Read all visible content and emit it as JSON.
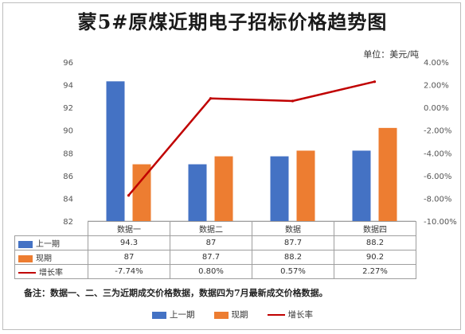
{
  "title": "蒙5#原煤近期电子招标价格趋势图",
  "unit": "单位：美元/吨",
  "note": "备注：数据一、二、三为近期成交价格数据，数据四为7月最新成交价格数据。",
  "colors": {
    "prev": "#4472C4",
    "curr": "#ED7D31",
    "rate": "#C00000"
  },
  "chart_data": {
    "type": "bar",
    "categories": [
      "数据一",
      "数据二",
      "数据",
      "数据四"
    ],
    "series": [
      {
        "name": "上一期",
        "type": "bar",
        "axis": "left",
        "values": [
          94.3,
          87,
          87.7,
          88.2
        ],
        "labels": [
          "94.3",
          "87",
          "87.7",
          "88.2"
        ]
      },
      {
        "name": "现期",
        "type": "bar",
        "axis": "left",
        "values": [
          87,
          87.7,
          88.2,
          90.2
        ],
        "labels": [
          "87",
          "87.7",
          "88.2",
          "90.2"
        ]
      },
      {
        "name": "增长率",
        "type": "line",
        "axis": "right",
        "values": [
          -7.74,
          0.8,
          0.57,
          2.27
        ],
        "labels": [
          "-7.74%",
          "0.80%",
          "0.57%",
          "2.27%"
        ]
      }
    ],
    "y_left": {
      "ylim": [
        82,
        96
      ],
      "ticks": [
        "82",
        "84",
        "86",
        "88",
        "90",
        "92",
        "94",
        "96"
      ]
    },
    "y_right": {
      "ylim": [
        -10,
        4
      ],
      "ticks": [
        "-10.00%",
        "-8.00%",
        "-6.00%",
        "-4.00%",
        "-2.00%",
        "0.00%",
        "2.00%",
        "4.00%"
      ]
    },
    "grid": false,
    "legend_position": "bottom"
  }
}
